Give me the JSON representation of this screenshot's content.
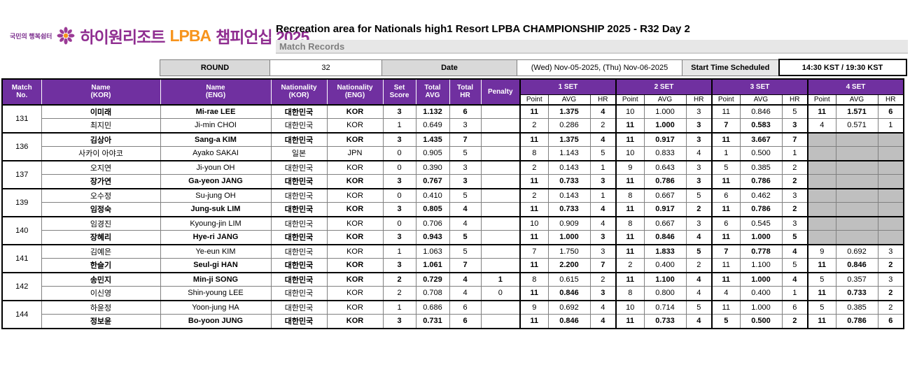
{
  "logo": {
    "tagline": "국민의 행복쉼터",
    "brand": "하이원리조트",
    "lpba": "LPBA",
    "suffix": "챔피언십 2025"
  },
  "header": {
    "title": "Recreation area for Nationals high1 Resort LPBA CHAMPIONSHIP 2025 - R32 Day 2",
    "subtitle": "Match Records"
  },
  "info": {
    "round_label": "ROUND",
    "round_value": "32",
    "date_label": "Date",
    "date_value": "(Wed) Nov-05-2025, (Thu) Nov-06-2025",
    "start_label": "Start Time Scheduled",
    "start_value": "14:30 KST / 19:30 KST"
  },
  "table": {
    "headers": {
      "match_no": "Match\nNo.",
      "name_kor": "Name\n(KOR)",
      "name_eng": "Name\n(ENG)",
      "nat_kor": "Nationality\n(KOR)",
      "nat_eng": "Nationality\n(ENG)",
      "set_score": "Set\nScore",
      "total_avg": "Total\nAVG",
      "total_hr": "Total\nHR",
      "penalty": "Penalty"
    },
    "set_groups": [
      "1 SET",
      "2 SET",
      "3 SET",
      "4 SET"
    ],
    "sub_headers": [
      "Point",
      "AVG",
      "HR"
    ]
  },
  "colors": {
    "header_purple": "#7030a0",
    "brand_purple": "#8f2d90",
    "brand_orange": "#f7941d",
    "label_gray": "#d9d9d9",
    "unplayed_gray": "#bfbfbf"
  },
  "matches": [
    {
      "no": "131",
      "players": [
        {
          "name_kor": "이미래",
          "name_eng": "Mi-rae LEE",
          "nat_kor": "대한민국",
          "nat_eng": "KOR",
          "set_score": "3",
          "total_avg": "1.132",
          "total_hr": "6",
          "penalty": "",
          "winner": true,
          "sets": [
            {
              "point": "11",
              "avg": "1.375",
              "hr": "4",
              "bold": true,
              "played": true
            },
            {
              "point": "10",
              "avg": "1.000",
              "hr": "3",
              "bold": false,
              "played": true
            },
            {
              "point": "11",
              "avg": "0.846",
              "hr": "5",
              "bold": false,
              "played": true
            },
            {
              "point": "11",
              "avg": "1.571",
              "hr": "6",
              "bold": true,
              "played": true
            }
          ]
        },
        {
          "name_kor": "최지민",
          "name_eng": "Ji-min CHOI",
          "nat_kor": "대한민국",
          "nat_eng": "KOR",
          "set_score": "1",
          "total_avg": "0.649",
          "total_hr": "3",
          "penalty": "",
          "winner": false,
          "sets": [
            {
              "point": "2",
              "avg": "0.286",
              "hr": "2",
              "bold": false,
              "played": true
            },
            {
              "point": "11",
              "avg": "1.000",
              "hr": "3",
              "bold": true,
              "played": true
            },
            {
              "point": "7",
              "avg": "0.583",
              "hr": "3",
              "bold": true,
              "played": true
            },
            {
              "point": "4",
              "avg": "0.571",
              "hr": "1",
              "bold": false,
              "played": true
            }
          ]
        }
      ]
    },
    {
      "no": "136",
      "players": [
        {
          "name_kor": "김상아",
          "name_eng": "Sang-a KIM",
          "nat_kor": "대한민국",
          "nat_eng": "KOR",
          "set_score": "3",
          "total_avg": "1.435",
          "total_hr": "7",
          "penalty": "",
          "winner": true,
          "sets": [
            {
              "point": "11",
              "avg": "1.375",
              "hr": "4",
              "bold": true,
              "played": true
            },
            {
              "point": "11",
              "avg": "0.917",
              "hr": "3",
              "bold": true,
              "played": true
            },
            {
              "point": "11",
              "avg": "3.667",
              "hr": "7",
              "bold": true,
              "played": true
            },
            {
              "point": "",
              "avg": "",
              "hr": "",
              "bold": false,
              "played": false
            }
          ]
        },
        {
          "name_kor": "사카이 아야코",
          "name_eng": "Ayako SAKAI",
          "nat_kor": "일본",
          "nat_eng": "JPN",
          "set_score": "0",
          "total_avg": "0.905",
          "total_hr": "5",
          "penalty": "",
          "winner": false,
          "sets": [
            {
              "point": "8",
              "avg": "1.143",
              "hr": "5",
              "bold": false,
              "played": true
            },
            {
              "point": "10",
              "avg": "0.833",
              "hr": "4",
              "bold": false,
              "played": true
            },
            {
              "point": "1",
              "avg": "0.500",
              "hr": "1",
              "bold": false,
              "played": true
            },
            {
              "point": "",
              "avg": "",
              "hr": "",
              "bold": false,
              "played": false
            }
          ]
        }
      ]
    },
    {
      "no": "137",
      "players": [
        {
          "name_kor": "오지연",
          "name_eng": "Ji-youn OH",
          "nat_kor": "대한민국",
          "nat_eng": "KOR",
          "set_score": "0",
          "total_avg": "0.390",
          "total_hr": "3",
          "penalty": "",
          "winner": false,
          "sets": [
            {
              "point": "2",
              "avg": "0.143",
              "hr": "1",
              "bold": false,
              "played": true
            },
            {
              "point": "9",
              "avg": "0.643",
              "hr": "3",
              "bold": false,
              "played": true
            },
            {
              "point": "5",
              "avg": "0.385",
              "hr": "2",
              "bold": false,
              "played": true
            },
            {
              "point": "",
              "avg": "",
              "hr": "",
              "bold": false,
              "played": false
            }
          ]
        },
        {
          "name_kor": "장가연",
          "name_eng": "Ga-yeon JANG",
          "nat_kor": "대한민국",
          "nat_eng": "KOR",
          "set_score": "3",
          "total_avg": "0.767",
          "total_hr": "3",
          "penalty": "",
          "winner": true,
          "sets": [
            {
              "point": "11",
              "avg": "0.733",
              "hr": "3",
              "bold": true,
              "played": true
            },
            {
              "point": "11",
              "avg": "0.786",
              "hr": "3",
              "bold": true,
              "played": true
            },
            {
              "point": "11",
              "avg": "0.786",
              "hr": "2",
              "bold": true,
              "played": true
            },
            {
              "point": "",
              "avg": "",
              "hr": "",
              "bold": false,
              "played": false
            }
          ]
        }
      ]
    },
    {
      "no": "139",
      "players": [
        {
          "name_kor": "오수정",
          "name_eng": "Su-jung OH",
          "nat_kor": "대한민국",
          "nat_eng": "KOR",
          "set_score": "0",
          "total_avg": "0.410",
          "total_hr": "5",
          "penalty": "",
          "winner": false,
          "sets": [
            {
              "point": "2",
              "avg": "0.143",
              "hr": "1",
              "bold": false,
              "played": true
            },
            {
              "point": "8",
              "avg": "0.667",
              "hr": "5",
              "bold": false,
              "played": true
            },
            {
              "point": "6",
              "avg": "0.462",
              "hr": "3",
              "bold": false,
              "played": true
            },
            {
              "point": "",
              "avg": "",
              "hr": "",
              "bold": false,
              "played": false
            }
          ]
        },
        {
          "name_kor": "임정숙",
          "name_eng": "Jung-suk LIM",
          "nat_kor": "대한민국",
          "nat_eng": "KOR",
          "set_score": "3",
          "total_avg": "0.805",
          "total_hr": "4",
          "penalty": "",
          "winner": true,
          "sets": [
            {
              "point": "11",
              "avg": "0.733",
              "hr": "4",
              "bold": true,
              "played": true
            },
            {
              "point": "11",
              "avg": "0.917",
              "hr": "2",
              "bold": true,
              "played": true
            },
            {
              "point": "11",
              "avg": "0.786",
              "hr": "2",
              "bold": true,
              "played": true
            },
            {
              "point": "",
              "avg": "",
              "hr": "",
              "bold": false,
              "played": false
            }
          ]
        }
      ]
    },
    {
      "no": "140",
      "players": [
        {
          "name_kor": "임경진",
          "name_eng": "Kyoung-jin LIM",
          "nat_kor": "대한민국",
          "nat_eng": "KOR",
          "set_score": "0",
          "total_avg": "0.706",
          "total_hr": "4",
          "penalty": "",
          "winner": false,
          "sets": [
            {
              "point": "10",
              "avg": "0.909",
              "hr": "4",
              "bold": false,
              "played": true
            },
            {
              "point": "8",
              "avg": "0.667",
              "hr": "3",
              "bold": false,
              "played": true
            },
            {
              "point": "6",
              "avg": "0.545",
              "hr": "3",
              "bold": false,
              "played": true
            },
            {
              "point": "",
              "avg": "",
              "hr": "",
              "bold": false,
              "played": false
            }
          ]
        },
        {
          "name_kor": "장혜리",
          "name_eng": "Hye-ri JANG",
          "nat_kor": "대한민국",
          "nat_eng": "KOR",
          "set_score": "3",
          "total_avg": "0.943",
          "total_hr": "5",
          "penalty": "",
          "winner": true,
          "sets": [
            {
              "point": "11",
              "avg": "1.000",
              "hr": "3",
              "bold": true,
              "played": true
            },
            {
              "point": "11",
              "avg": "0.846",
              "hr": "4",
              "bold": true,
              "played": true
            },
            {
              "point": "11",
              "avg": "1.000",
              "hr": "5",
              "bold": true,
              "played": true
            },
            {
              "point": "",
              "avg": "",
              "hr": "",
              "bold": false,
              "played": false
            }
          ]
        }
      ]
    },
    {
      "no": "141",
      "players": [
        {
          "name_kor": "김예은",
          "name_eng": "Ye-eun KIM",
          "nat_kor": "대한민국",
          "nat_eng": "KOR",
          "set_score": "1",
          "total_avg": "1.063",
          "total_hr": "5",
          "penalty": "",
          "winner": false,
          "sets": [
            {
              "point": "7",
              "avg": "1.750",
              "hr": "3",
              "bold": false,
              "played": true
            },
            {
              "point": "11",
              "avg": "1.833",
              "hr": "5",
              "bold": true,
              "played": true
            },
            {
              "point": "7",
              "avg": "0.778",
              "hr": "4",
              "bold": true,
              "played": true
            },
            {
              "point": "9",
              "avg": "0.692",
              "hr": "3",
              "bold": false,
              "played": true
            }
          ]
        },
        {
          "name_kor": "한슬기",
          "name_eng": "Seul-gi HAN",
          "nat_kor": "대한민국",
          "nat_eng": "KOR",
          "set_score": "3",
          "total_avg": "1.061",
          "total_hr": "7",
          "penalty": "",
          "winner": true,
          "sets": [
            {
              "point": "11",
              "avg": "2.200",
              "hr": "7",
              "bold": true,
              "played": true
            },
            {
              "point": "2",
              "avg": "0.400",
              "hr": "2",
              "bold": false,
              "played": true
            },
            {
              "point": "11",
              "avg": "1.100",
              "hr": "5",
              "bold": false,
              "played": true
            },
            {
              "point": "11",
              "avg": "0.846",
              "hr": "2",
              "bold": true,
              "played": true
            }
          ]
        }
      ]
    },
    {
      "no": "142",
      "players": [
        {
          "name_kor": "송민지",
          "name_eng": "Min-ji SONG",
          "nat_kor": "대한민국",
          "nat_eng": "KOR",
          "set_score": "2",
          "total_avg": "0.729",
          "total_hr": "4",
          "penalty": "1",
          "winner": true,
          "sets": [
            {
              "point": "8",
              "avg": "0.615",
              "hr": "2",
              "bold": false,
              "played": true
            },
            {
              "point": "11",
              "avg": "1.100",
              "hr": "4",
              "bold": true,
              "played": true
            },
            {
              "point": "11",
              "avg": "1.000",
              "hr": "4",
              "bold": true,
              "played": true
            },
            {
              "point": "5",
              "avg": "0.357",
              "hr": "3",
              "bold": false,
              "played": true
            }
          ]
        },
        {
          "name_kor": "이신영",
          "name_eng": "Shin-young LEE",
          "nat_kor": "대한민국",
          "nat_eng": "KOR",
          "set_score": "2",
          "total_avg": "0.708",
          "total_hr": "4",
          "penalty": "0",
          "winner": false,
          "sets": [
            {
              "point": "11",
              "avg": "0.846",
              "hr": "3",
              "bold": true,
              "played": true
            },
            {
              "point": "8",
              "avg": "0.800",
              "hr": "4",
              "bold": false,
              "played": true
            },
            {
              "point": "4",
              "avg": "0.400",
              "hr": "1",
              "bold": false,
              "played": true
            },
            {
              "point": "11",
              "avg": "0.733",
              "hr": "2",
              "bold": true,
              "played": true
            }
          ]
        }
      ]
    },
    {
      "no": "144",
      "players": [
        {
          "name_kor": "하윤정",
          "name_eng": "Yoon-jung HA",
          "nat_kor": "대한민국",
          "nat_eng": "KOR",
          "set_score": "1",
          "total_avg": "0.686",
          "total_hr": "6",
          "penalty": "",
          "winner": false,
          "sets": [
            {
              "point": "9",
              "avg": "0.692",
              "hr": "4",
              "bold": false,
              "played": true
            },
            {
              "point": "10",
              "avg": "0.714",
              "hr": "5",
              "bold": false,
              "played": true
            },
            {
              "point": "11",
              "avg": "1.000",
              "hr": "6",
              "bold": false,
              "played": true
            },
            {
              "point": "5",
              "avg": "0.385",
              "hr": "2",
              "bold": false,
              "played": true
            }
          ]
        },
        {
          "name_kor": "정보윤",
          "name_eng": "Bo-yoon JUNG",
          "nat_kor": "대한민국",
          "nat_eng": "KOR",
          "set_score": "3",
          "total_avg": "0.731",
          "total_hr": "6",
          "penalty": "",
          "winner": true,
          "sets": [
            {
              "point": "11",
              "avg": "0.846",
              "hr": "4",
              "bold": true,
              "played": true
            },
            {
              "point": "11",
              "avg": "0.733",
              "hr": "4",
              "bold": true,
              "played": true
            },
            {
              "point": "5",
              "avg": "0.500",
              "hr": "2",
              "bold": true,
              "played": true
            },
            {
              "point": "11",
              "avg": "0.786",
              "hr": "6",
              "bold": true,
              "played": true
            }
          ]
        }
      ]
    }
  ]
}
